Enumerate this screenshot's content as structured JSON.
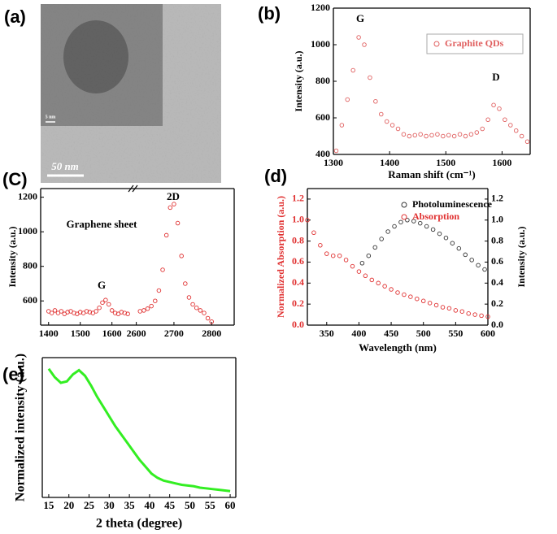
{
  "image": {
    "panel_label": "(a)",
    "scale_bar": "50 nm",
    "inset_scale_bar": "5 nm"
  },
  "chart_data": [
    {
      "type": "scatter",
      "panel_label": "(b)",
      "x_label": "Raman shift (cm⁻¹)",
      "y_label": "Intensity (a.u.)",
      "xlim": [
        1300,
        1650
      ],
      "ylim": [
        400,
        1200
      ],
      "xticks": [
        1300,
        1400,
        1500,
        1600
      ],
      "yticks": [
        400,
        600,
        800,
        1000,
        1200
      ],
      "annotations": [
        "G",
        "D"
      ],
      "legend": "upper right",
      "series": [
        {
          "name": "Graphite QDs",
          "color": "#e06060",
          "x": [
            1305,
            1315,
            1325,
            1335,
            1345,
            1355,
            1365,
            1375,
            1385,
            1395,
            1405,
            1415,
            1425,
            1435,
            1445,
            1455,
            1465,
            1475,
            1485,
            1495,
            1505,
            1515,
            1525,
            1535,
            1545,
            1555,
            1565,
            1575,
            1585,
            1595,
            1605,
            1615,
            1625,
            1635,
            1645
          ],
          "values": [
            420,
            560,
            700,
            860,
            1040,
            1000,
            820,
            690,
            620,
            580,
            560,
            540,
            510,
            500,
            505,
            510,
            500,
            505,
            510,
            500,
            505,
            500,
            510,
            500,
            510,
            520,
            540,
            590,
            670,
            650,
            590,
            560,
            530,
            500,
            470
          ]
        }
      ]
    },
    {
      "type": "scatter",
      "panel_label": "(C)",
      "y_label": "Intensity (a.u.)",
      "xlim": [
        1375,
        1665
      ],
      "ylim": [
        460,
        1250
      ],
      "xticks": [
        1400,
        1500,
        1600
      ],
      "yticks": [
        600,
        800,
        1000,
        1200
      ],
      "annotations": [
        "Graphene sheet",
        "G"
      ],
      "series": [
        {
          "color": "#e03030",
          "x": [
            1400,
            1410,
            1420,
            1430,
            1440,
            1450,
            1460,
            1470,
            1480,
            1490,
            1500,
            1510,
            1520,
            1530,
            1540,
            1550,
            1560,
            1570,
            1580,
            1590,
            1600,
            1610,
            1620,
            1630,
            1640,
            1650
          ],
          "values": [
            540,
            530,
            545,
            530,
            540,
            525,
            535,
            540,
            530,
            525,
            535,
            530,
            540,
            535,
            530,
            540,
            560,
            590,
            605,
            580,
            545,
            530,
            525,
            535,
            530,
            525
          ]
        }
      ]
    },
    {
      "type": "scatter",
      "xlim": [
        2590,
        2860
      ],
      "ylim": [
        460,
        1250
      ],
      "xticks": [
        2600,
        2700,
        2800
      ],
      "annotations": [
        "2D"
      ],
      "series": [
        {
          "color": "#e03030",
          "x": [
            2610,
            2620,
            2630,
            2640,
            2650,
            2660,
            2670,
            2680,
            2690,
            2700,
            2710,
            2720,
            2730,
            2740,
            2750,
            2760,
            2770,
            2780,
            2790,
            2800
          ],
          "values": [
            540,
            545,
            555,
            570,
            600,
            660,
            780,
            980,
            1140,
            1160,
            1050,
            860,
            700,
            620,
            580,
            560,
            545,
            530,
            500,
            480
          ]
        }
      ]
    },
    {
      "type": "scatter",
      "panel_label": "(d)",
      "x_label": "Wavelength (nm)",
      "y_label": "Normalized Absorption (a.u.)",
      "y_label_color": "#e03030",
      "y2_label": "Intensity (a.u.)",
      "xlim": [
        320,
        600
      ],
      "ylim": [
        0,
        1.3
      ],
      "y2lim": [
        0,
        1.3
      ],
      "xticks": [
        350,
        400,
        450,
        500,
        550,
        600
      ],
      "yticks": [
        {
          "value": 0,
          "label": "0.0"
        },
        0.2,
        0.4,
        0.6,
        0.8,
        {
          "value": 1,
          "label": "1.0"
        },
        1.2
      ],
      "y2ticks": [
        {
          "value": 0,
          "label": "0.0"
        },
        0.2,
        0.4,
        0.6,
        0.8,
        {
          "value": 1,
          "label": "1.0"
        },
        1.2
      ],
      "legend": "upper right",
      "series": [
        {
          "name": "Photoluminescence",
          "color": "#333333",
          "axis": "y2",
          "x": [
            405,
            415,
            425,
            435,
            445,
            455,
            465,
            475,
            485,
            495,
            505,
            515,
            525,
            535,
            545,
            555,
            565,
            575,
            585,
            595
          ],
          "values": [
            0.59,
            0.66,
            0.74,
            0.82,
            0.89,
            0.94,
            0.98,
            1.0,
            0.99,
            0.97,
            0.94,
            0.91,
            0.87,
            0.83,
            0.78,
            0.73,
            0.67,
            0.62,
            0.57,
            0.53
          ]
        },
        {
          "name": "Absorption",
          "color": "#e03030",
          "x": [
            320,
            330,
            340,
            350,
            360,
            370,
            380,
            390,
            400,
            410,
            420,
            430,
            440,
            450,
            460,
            470,
            480,
            490,
            500,
            510,
            520,
            530,
            540,
            550,
            560,
            570,
            580,
            590,
            600
          ],
          "values": [
            1.0,
            0.88,
            0.76,
            0.68,
            0.66,
            0.66,
            0.62,
            0.56,
            0.51,
            0.47,
            0.43,
            0.4,
            0.37,
            0.34,
            0.31,
            0.29,
            0.27,
            0.25,
            0.23,
            0.21,
            0.19,
            0.17,
            0.16,
            0.14,
            0.13,
            0.11,
            0.1,
            0.09,
            0.08
          ]
        }
      ]
    },
    {
      "type": "line",
      "panel_label": "(e)",
      "x_label": "2 theta (degree)",
      "y_label": "Normalized intensity (a.u.)",
      "xlim": [
        13.4,
        61.4
      ],
      "ylim": [
        0,
        1
      ],
      "xticks": [
        15,
        20,
        25,
        30,
        35,
        40,
        45,
        50,
        55,
        60
      ],
      "series": [
        {
          "color": "#33ee22",
          "x": [
            15,
            16.5,
            18,
            19.5,
            21,
            22.5,
            24,
            25.5,
            27,
            28.5,
            30,
            31.5,
            33,
            34.5,
            36,
            37.5,
            39,
            40.5,
            42,
            43.5,
            45,
            46.5,
            48,
            49.5,
            51,
            52.5,
            54,
            55.5,
            57,
            58.5,
            60
          ],
          "values": [
            0.92,
            0.86,
            0.82,
            0.83,
            0.88,
            0.91,
            0.87,
            0.8,
            0.72,
            0.65,
            0.58,
            0.51,
            0.45,
            0.39,
            0.33,
            0.27,
            0.22,
            0.17,
            0.14,
            0.12,
            0.11,
            0.1,
            0.09,
            0.085,
            0.08,
            0.07,
            0.065,
            0.06,
            0.055,
            0.05,
            0.045
          ]
        }
      ]
    }
  ]
}
